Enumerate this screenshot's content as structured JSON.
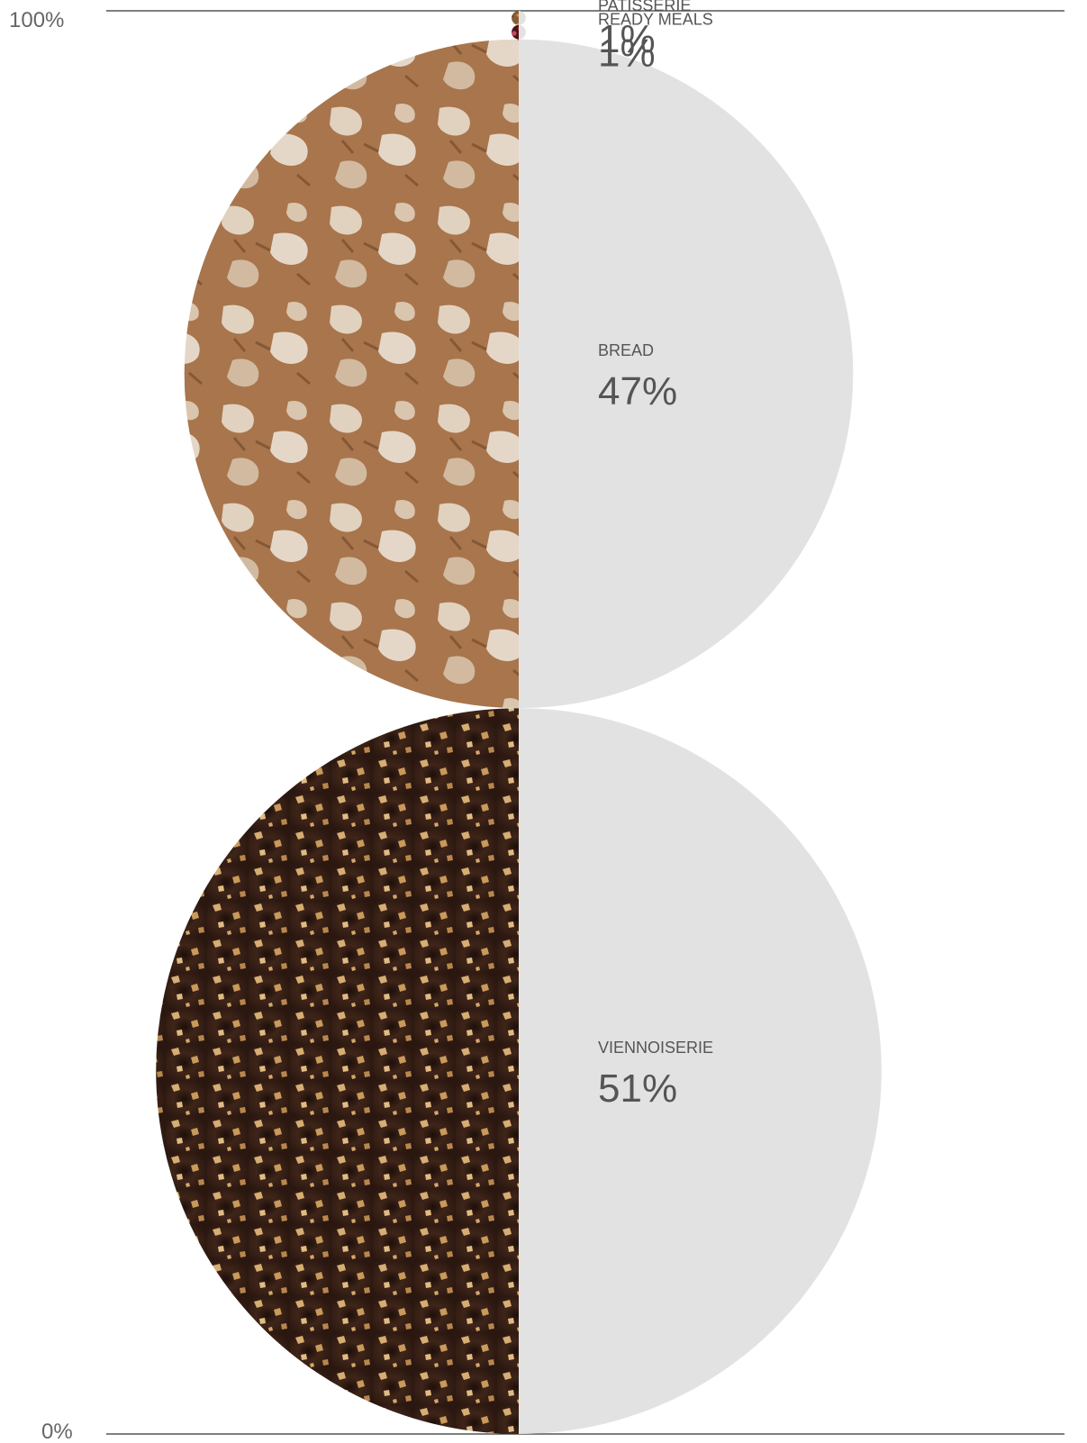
{
  "chart_data": {
    "type": "stacked-circle",
    "y_axis": {
      "top_label": "100%",
      "bottom_label": "0%",
      "range": [
        0,
        100
      ]
    },
    "segments": [
      {
        "label": "VIENNOISERIE",
        "value": 51,
        "value_text": "51%",
        "photo": "chocolate-donut-photo"
      },
      {
        "label": "BREAD",
        "value": 47,
        "value_text": "47%",
        "photo": "bread-crust-photo"
      },
      {
        "label": "READY MEALS",
        "value": 1,
        "value_text": "1%",
        "photo": "pomegranate-photo"
      },
      {
        "label": "PATISSERIE",
        "value": 1,
        "value_text": "1%",
        "photo": "spice-sprinkle-photo"
      }
    ]
  },
  "colors": {
    "half_fill": "#e2e2e2",
    "axis_line": "#333333",
    "text": "#555555",
    "viennoiserie_base": "#3b231b",
    "bread_base": "#b98a62",
    "ready_meals_base": "#6b1c25",
    "patisserie_base": "#9a5a38"
  }
}
